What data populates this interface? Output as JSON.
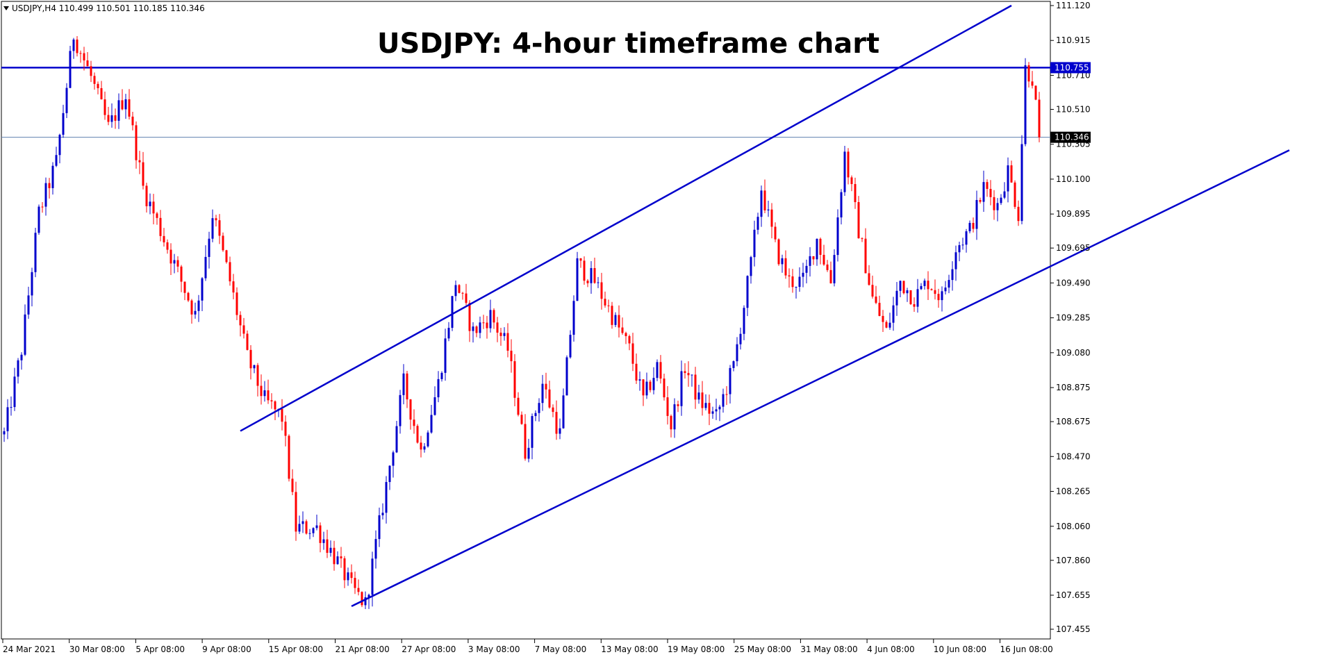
{
  "header": {
    "symbol_info": "USDJPY,H4  110.499 110.501 110.185 110.346",
    "menu_icon": "triangle-down-icon"
  },
  "chart_data": {
    "type": "candlestick",
    "title": "USDJPY: 4-hour timeframe chart",
    "ylim": [
      107.35,
      111.14
    ],
    "y_ticks": [
      "111.120",
      "110.915",
      "110.710",
      "110.510",
      "110.305",
      "110.100",
      "109.895",
      "109.695",
      "109.490",
      "109.285",
      "109.080",
      "108.875",
      "108.675",
      "108.470",
      "108.265",
      "108.060",
      "107.860",
      "107.655",
      "107.455"
    ],
    "x_ticks": [
      "24 Mar 2021",
      "30 Mar 08:00",
      "5 Apr 08:00",
      "9 Apr 08:00",
      "15 Apr 08:00",
      "21 Apr 08:00",
      "27 Apr 08:00",
      "3 May 08:00",
      "7 May 08:00",
      "13 May 08:00",
      "19 May 08:00",
      "25 May 08:00",
      "31 May 08:00",
      "4 Jun 08:00",
      "10 Jun 08:00",
      "16 Jun 08:00"
    ],
    "colors": {
      "up": "#0000cc",
      "down": "#ff0000",
      "line": "#0000cc",
      "grid_price": "#6080b0",
      "bg": "#ffffff"
    },
    "horizontal_levels": [
      {
        "value": 110.755,
        "label": "110.755",
        "style": "thick"
      },
      {
        "value": 110.346,
        "label": "110.346",
        "style": "thin"
      }
    ],
    "trendlines": [
      {
        "name": "upper-channel",
        "from": [
          68,
          108.62
        ],
        "to": [
          290,
          111.12
        ]
      },
      {
        "name": "lower-channel",
        "from": [
          100,
          107.59
        ],
        "to": [
          370,
          110.27
        ]
      }
    ],
    "anchors": [
      [
        0,
        108.6
      ],
      [
        5,
        109.1
      ],
      [
        10,
        109.9
      ],
      [
        15,
        110.2
      ],
      [
        20,
        110.95
      ],
      [
        25,
        110.7
      ],
      [
        30,
        110.4
      ],
      [
        35,
        110.6
      ],
      [
        40,
        110.05
      ],
      [
        45,
        109.8
      ],
      [
        50,
        109.55
      ],
      [
        55,
        109.3
      ],
      [
        60,
        109.9
      ],
      [
        65,
        109.5
      ],
      [
        70,
        109.05
      ],
      [
        75,
        108.8
      ],
      [
        80,
        108.7
      ],
      [
        84,
        108.05
      ],
      [
        90,
        108.05
      ],
      [
        96,
        107.85
      ],
      [
        100,
        107.7
      ],
      [
        104,
        107.6
      ],
      [
        110,
        108.3
      ],
      [
        115,
        108.9
      ],
      [
        120,
        108.5
      ],
      [
        125,
        108.9
      ],
      [
        130,
        109.5
      ],
      [
        135,
        109.2
      ],
      [
        140,
        109.3
      ],
      [
        145,
        109.1
      ],
      [
        150,
        108.5
      ],
      [
        155,
        108.9
      ],
      [
        160,
        108.6
      ],
      [
        165,
        109.6
      ],
      [
        170,
        109.5
      ],
      [
        175,
        109.3
      ],
      [
        180,
        109.1
      ],
      [
        184,
        108.8
      ],
      [
        188,
        109.0
      ],
      [
        192,
        108.65
      ],
      [
        196,
        109.0
      ],
      [
        200,
        108.8
      ],
      [
        205,
        108.7
      ],
      [
        210,
        109.0
      ],
      [
        215,
        109.6
      ],
      [
        218,
        110.05
      ],
      [
        222,
        109.7
      ],
      [
        226,
        109.5
      ],
      [
        230,
        109.5
      ],
      [
        234,
        109.75
      ],
      [
        238,
        109.5
      ],
      [
        242,
        110.25
      ],
      [
        246,
        109.8
      ],
      [
        250,
        109.4
      ],
      [
        254,
        109.2
      ],
      [
        258,
        109.5
      ],
      [
        262,
        109.4
      ],
      [
        266,
        109.5
      ],
      [
        270,
        109.4
      ],
      [
        274,
        109.7
      ],
      [
        278,
        109.8
      ],
      [
        282,
        110.05
      ],
      [
        286,
        109.95
      ],
      [
        289,
        110.15
      ],
      [
        292,
        109.9
      ],
      [
        294,
        110.75
      ],
      [
        296,
        110.7
      ],
      [
        298,
        110.35
      ]
    ],
    "n_candles": 299
  }
}
